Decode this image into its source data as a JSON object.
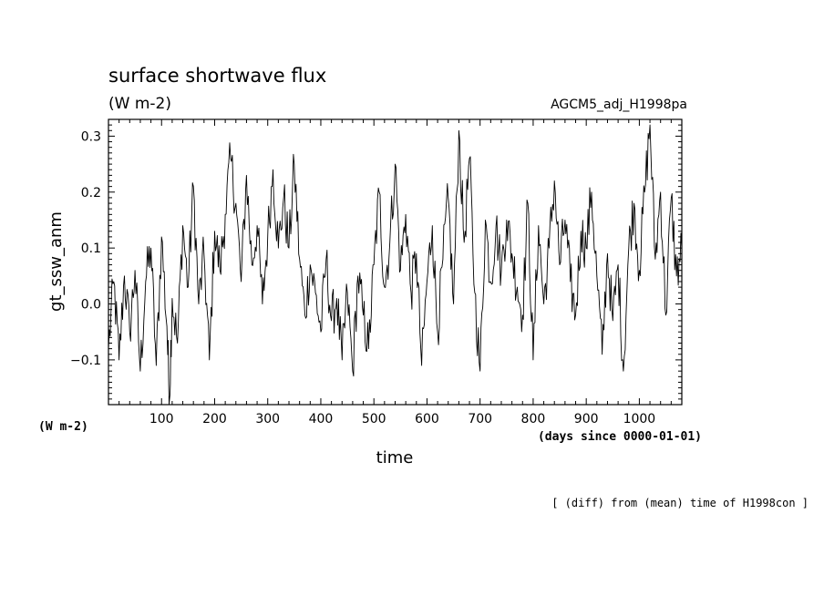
{
  "chart_data": {
    "type": "line",
    "title": "surface shortwave flux",
    "title_units": "(W m-2)",
    "dataset_label": "AGCM5_adj_H1998pa",
    "xlabel": "time",
    "x_units": "(days since 0000-01-01)",
    "ylabel": "gt_ssw_anm",
    "y_units": "(W m-2)",
    "footnote": "[ (diff) from (mean) time of H1998con ]",
    "xlim": [
      0,
      1080
    ],
    "ylim": [
      -0.18,
      0.33
    ],
    "x_ticks": [
      100,
      200,
      300,
      400,
      500,
      600,
      700,
      800,
      900,
      1000
    ],
    "x_tick_labels": [
      "100",
      "200",
      "300",
      "400",
      "500",
      "600",
      "700",
      "800",
      "900",
      "1000"
    ],
    "y_ticks": [
      -0.1,
      0.0,
      0.1,
      0.2,
      0.3
    ],
    "y_tick_labels": [
      "−0.1",
      "0.0",
      "0.1",
      "0.2",
      "0.3"
    ],
    "grid": false,
    "series": [
      {
        "x": [
          0,
          10,
          20,
          30,
          40,
          50,
          60,
          70,
          80,
          90,
          100,
          110,
          115,
          120,
          130,
          140,
          150,
          160,
          170,
          180,
          190,
          200,
          210,
          220,
          230,
          240,
          250,
          260,
          270,
          280,
          290,
          300,
          310,
          320,
          330,
          340,
          350,
          360,
          370,
          380,
          390,
          400,
          410,
          420,
          430,
          440,
          450,
          460,
          470,
          480,
          490,
          500,
          510,
          520,
          530,
          540,
          550,
          560,
          570,
          580,
          590,
          600,
          610,
          620,
          630,
          640,
          650,
          660,
          670,
          680,
          690,
          700,
          710,
          720,
          730,
          740,
          750,
          760,
          770,
          780,
          790,
          800,
          810,
          820,
          830,
          840,
          850,
          860,
          870,
          880,
          890,
          900,
          910,
          920,
          930,
          940,
          950,
          960,
          970,
          980,
          990,
          1000,
          1010,
          1020,
          1030,
          1040,
          1050,
          1060,
          1070,
          1080
        ],
        "y": [
          -0.08,
          0.04,
          -0.1,
          0.05,
          -0.05,
          0.06,
          -0.12,
          0.04,
          0.1,
          -0.11,
          0.12,
          -0.04,
          -0.17,
          0.01,
          -0.07,
          0.14,
          0.03,
          0.21,
          0.0,
          0.09,
          -0.1,
          0.13,
          0.06,
          0.16,
          0.26,
          0.18,
          0.04,
          0.23,
          0.07,
          0.14,
          0.0,
          0.12,
          0.24,
          0.1,
          0.19,
          0.1,
          0.25,
          0.08,
          -0.02,
          0.07,
          0.02,
          -0.05,
          0.08,
          -0.03,
          0.01,
          -0.1,
          0.02,
          -0.12,
          0.05,
          -0.02,
          -0.08,
          0.07,
          0.2,
          0.03,
          0.11,
          0.25,
          0.06,
          0.16,
          0.02,
          0.09,
          -0.11,
          0.04,
          0.14,
          -0.05,
          0.08,
          0.19,
          0.0,
          0.31,
          0.11,
          0.26,
          0.02,
          -0.12,
          0.15,
          0.04,
          0.14,
          0.06,
          0.15,
          0.09,
          0.03,
          -0.02,
          0.18,
          -0.1,
          0.14,
          0.0,
          0.1,
          0.22,
          0.07,
          0.15,
          0.04,
          -0.02,
          0.13,
          0.1,
          0.2,
          0.05,
          -0.09,
          0.09,
          -0.03,
          0.07,
          -0.12,
          0.1,
          0.18,
          0.06,
          0.2,
          0.32,
          0.08,
          0.2,
          -0.02,
          0.19,
          0.05,
          0.1
        ]
      }
    ]
  }
}
